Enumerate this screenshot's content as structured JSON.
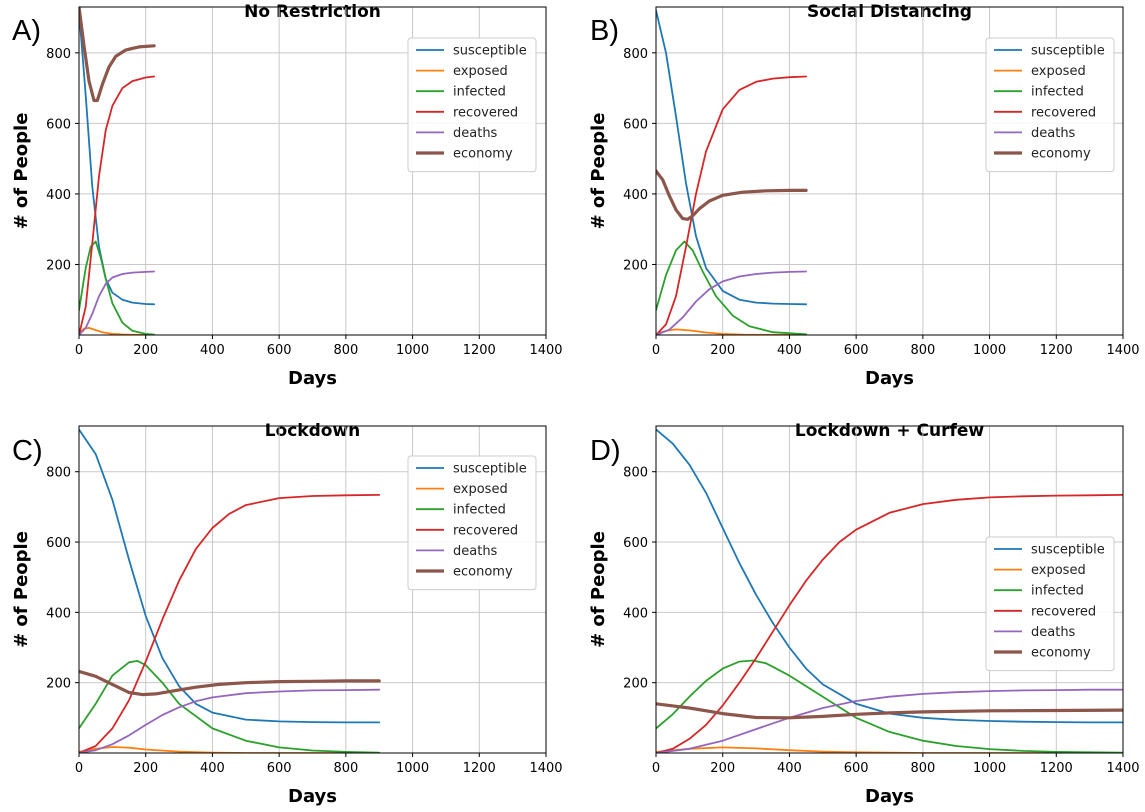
{
  "chart_data": [
    {
      "panel": "A)",
      "type": "line",
      "title": "No Restriction",
      "xlabel": "Days",
      "ylabel": "# of People",
      "xlim": [
        0,
        1400
      ],
      "ylim": [
        0,
        930
      ],
      "xticks": [
        0,
        200,
        400,
        600,
        800,
        1000,
        1200,
        1400
      ],
      "yticks": [
        200,
        400,
        600,
        800
      ],
      "grid": true,
      "legend": "top-right",
      "series": [
        {
          "name": "susceptible",
          "color": "#1f77b4",
          "x": [
            0,
            20,
            40,
            60,
            80,
            100,
            130,
            160,
            200,
            225
          ],
          "y": [
            920,
            680,
            420,
            250,
            160,
            120,
            100,
            92,
            88,
            87
          ]
        },
        {
          "name": "exposed",
          "color": "#ff7f0e",
          "x": [
            0,
            15,
            30,
            50,
            70,
            100,
            140,
            225
          ],
          "y": [
            5,
            18,
            20,
            14,
            8,
            3,
            1,
            0
          ]
        },
        {
          "name": "infected",
          "color": "#2ca02c",
          "x": [
            0,
            20,
            35,
            50,
            65,
            80,
            100,
            130,
            160,
            200,
            225
          ],
          "y": [
            70,
            190,
            250,
            265,
            220,
            160,
            90,
            35,
            12,
            3,
            1
          ]
        },
        {
          "name": "recovered",
          "color": "#d62728",
          "x": [
            0,
            20,
            40,
            60,
            80,
            100,
            130,
            160,
            200,
            225
          ],
          "y": [
            0,
            80,
            260,
            450,
            580,
            650,
            700,
            720,
            730,
            733
          ]
        },
        {
          "name": "deaths",
          "color": "#9467bd",
          "x": [
            0,
            20,
            40,
            60,
            80,
            100,
            130,
            160,
            200,
            225
          ],
          "y": [
            0,
            20,
            60,
            110,
            145,
            163,
            173,
            177,
            179,
            180
          ]
        },
        {
          "name": "economy",
          "color": "#8c564b",
          "width": 3.2,
          "x": [
            0,
            15,
            30,
            45,
            55,
            70,
            90,
            110,
            140,
            180,
            225
          ],
          "y": [
            930,
            820,
            720,
            665,
            665,
            710,
            760,
            790,
            808,
            817,
            820
          ]
        }
      ]
    },
    {
      "panel": "B)",
      "type": "line",
      "title": "Social Distancing",
      "xlabel": "Days",
      "ylabel": "# of People",
      "xlim": [
        0,
        1400
      ],
      "ylim": [
        0,
        930
      ],
      "xticks": [
        0,
        200,
        400,
        600,
        800,
        1000,
        1200,
        1400
      ],
      "yticks": [
        200,
        400,
        600,
        800
      ],
      "grid": true,
      "legend": "top-right",
      "series": [
        {
          "name": "susceptible",
          "color": "#1f77b4",
          "x": [
            0,
            30,
            60,
            90,
            120,
            150,
            200,
            250,
            300,
            350,
            400,
            450
          ],
          "y": [
            920,
            800,
            620,
            430,
            280,
            190,
            125,
            100,
            92,
            89,
            88,
            87
          ]
        },
        {
          "name": "exposed",
          "color": "#ff7f0e",
          "x": [
            0,
            30,
            60,
            100,
            150,
            200,
            260,
            450
          ],
          "y": [
            3,
            12,
            16,
            13,
            7,
            3,
            1,
            0
          ]
        },
        {
          "name": "infected",
          "color": "#2ca02c",
          "x": [
            0,
            30,
            60,
            85,
            110,
            140,
            180,
            230,
            280,
            350,
            450
          ],
          "y": [
            70,
            170,
            240,
            265,
            240,
            180,
            110,
            55,
            25,
            8,
            2
          ]
        },
        {
          "name": "recovered",
          "color": "#d62728",
          "x": [
            0,
            30,
            60,
            90,
            120,
            150,
            200,
            250,
            300,
            350,
            400,
            450
          ],
          "y": [
            0,
            30,
            110,
            250,
            400,
            520,
            640,
            695,
            718,
            727,
            731,
            733
          ]
        },
        {
          "name": "deaths",
          "color": "#9467bd",
          "x": [
            0,
            40,
            80,
            120,
            160,
            200,
            250,
            300,
            350,
            400,
            450
          ],
          "y": [
            0,
            15,
            50,
            95,
            130,
            152,
            166,
            173,
            177,
            179,
            180
          ]
        },
        {
          "name": "economy",
          "color": "#8c564b",
          "width": 3.2,
          "x": [
            0,
            20,
            40,
            60,
            80,
            95,
            110,
            130,
            160,
            200,
            260,
            330,
            400,
            450
          ],
          "y": [
            465,
            440,
            395,
            355,
            330,
            328,
            338,
            358,
            380,
            396,
            405,
            409,
            410,
            410
          ]
        }
      ]
    },
    {
      "panel": "C)",
      "type": "line",
      "title": "Lockdown",
      "xlabel": "Days",
      "ylabel": "# of People",
      "xlim": [
        0,
        1400
      ],
      "ylim": [
        0,
        930
      ],
      "xticks": [
        0,
        200,
        400,
        600,
        800,
        1000,
        1200,
        1400
      ],
      "yticks": [
        200,
        400,
        600,
        800
      ],
      "grid": true,
      "legend": "top-right",
      "series": [
        {
          "name": "susceptible",
          "color": "#1f77b4",
          "x": [
            0,
            50,
            100,
            150,
            200,
            250,
            300,
            350,
            400,
            500,
            600,
            700,
            800,
            900
          ],
          "y": [
            920,
            850,
            720,
            550,
            390,
            270,
            190,
            140,
            115,
            95,
            90,
            88,
            87,
            87
          ]
        },
        {
          "name": "exposed",
          "color": "#ff7f0e",
          "x": [
            0,
            50,
            100,
            150,
            200,
            300,
            400,
            500,
            900
          ],
          "y": [
            3,
            12,
            17,
            15,
            10,
            4,
            1,
            0,
            0
          ]
        },
        {
          "name": "infected",
          "color": "#2ca02c",
          "x": [
            0,
            50,
            100,
            150,
            175,
            200,
            250,
            300,
            400,
            500,
            600,
            700,
            800,
            900
          ],
          "y": [
            70,
            140,
            220,
            258,
            262,
            250,
            200,
            140,
            70,
            35,
            16,
            7,
            3,
            1
          ]
        },
        {
          "name": "recovered",
          "color": "#d62728",
          "x": [
            0,
            50,
            100,
            150,
            200,
            250,
            300,
            350,
            400,
            450,
            500,
            600,
            700,
            800,
            900
          ],
          "y": [
            0,
            20,
            70,
            150,
            260,
            380,
            490,
            580,
            640,
            680,
            705,
            725,
            731,
            733,
            734
          ]
        },
        {
          "name": "deaths",
          "color": "#9467bd",
          "x": [
            0,
            50,
            100,
            150,
            200,
            250,
            300,
            350,
            400,
            500,
            600,
            700,
            800,
            900
          ],
          "y": [
            0,
            8,
            25,
            50,
            80,
            108,
            130,
            147,
            158,
            170,
            175,
            178,
            179,
            180
          ]
        },
        {
          "name": "economy",
          "color": "#8c564b",
          "width": 3.2,
          "x": [
            0,
            50,
            100,
            150,
            190,
            230,
            280,
            350,
            420,
            500,
            600,
            700,
            800,
            900
          ],
          "y": [
            232,
            218,
            195,
            172,
            166,
            168,
            176,
            187,
            195,
            200,
            203,
            204,
            205,
            205
          ]
        }
      ]
    },
    {
      "panel": "D)",
      "type": "line",
      "title": "Lockdown + Curfew",
      "xlabel": "Days",
      "ylabel": "# of People",
      "xlim": [
        0,
        1400
      ],
      "ylim": [
        0,
        930
      ],
      "xticks": [
        0,
        200,
        400,
        600,
        800,
        1000,
        1200,
        1400
      ],
      "yticks": [
        200,
        400,
        600,
        800
      ],
      "grid": true,
      "legend": "right",
      "series": [
        {
          "name": "susceptible",
          "color": "#1f77b4",
          "x": [
            0,
            50,
            100,
            150,
            200,
            250,
            300,
            350,
            400,
            450,
            500,
            600,
            700,
            800,
            900,
            1000,
            1100,
            1200,
            1300,
            1400
          ],
          "y": [
            920,
            880,
            820,
            740,
            640,
            540,
            450,
            370,
            300,
            240,
            195,
            140,
            112,
            100,
            94,
            91,
            89,
            88,
            87,
            87
          ]
        },
        {
          "name": "exposed",
          "color": "#ff7f0e",
          "x": [
            0,
            100,
            200,
            300,
            400,
            500,
            600,
            700,
            800,
            1400
          ],
          "y": [
            3,
            12,
            16,
            13,
            8,
            4,
            2,
            1,
            0,
            0
          ]
        },
        {
          "name": "infected",
          "color": "#2ca02c",
          "x": [
            0,
            50,
            100,
            150,
            200,
            250,
            290,
            330,
            400,
            500,
            600,
            700,
            800,
            900,
            1000,
            1100,
            1200,
            1400
          ],
          "y": [
            70,
            110,
            160,
            205,
            240,
            260,
            263,
            255,
            220,
            160,
            100,
            60,
            35,
            20,
            11,
            6,
            3,
            1
          ]
        },
        {
          "name": "recovered",
          "color": "#d62728",
          "x": [
            0,
            50,
            100,
            150,
            200,
            250,
            300,
            350,
            400,
            450,
            500,
            550,
            600,
            700,
            800,
            900,
            1000,
            1100,
            1200,
            1300,
            1400
          ],
          "y": [
            0,
            12,
            40,
            80,
            135,
            200,
            270,
            345,
            420,
            490,
            550,
            600,
            635,
            683,
            708,
            720,
            727,
            730,
            732,
            733,
            734
          ]
        },
        {
          "name": "deaths",
          "color": "#9467bd",
          "x": [
            0,
            100,
            200,
            300,
            400,
            500,
            600,
            700,
            800,
            900,
            1000,
            1100,
            1200,
            1300,
            1400
          ],
          "y": [
            0,
            12,
            35,
            68,
            100,
            128,
            148,
            160,
            168,
            173,
            176,
            178,
            179,
            180,
            180
          ]
        },
        {
          "name": "economy",
          "color": "#8c564b",
          "width": 3.2,
          "x": [
            0,
            100,
            200,
            300,
            400,
            500,
            600,
            700,
            800,
            1000,
            1200,
            1400
          ],
          "y": [
            140,
            128,
            112,
            101,
            100,
            104,
            110,
            114,
            117,
            120,
            121,
            122
          ]
        }
      ]
    }
  ]
}
